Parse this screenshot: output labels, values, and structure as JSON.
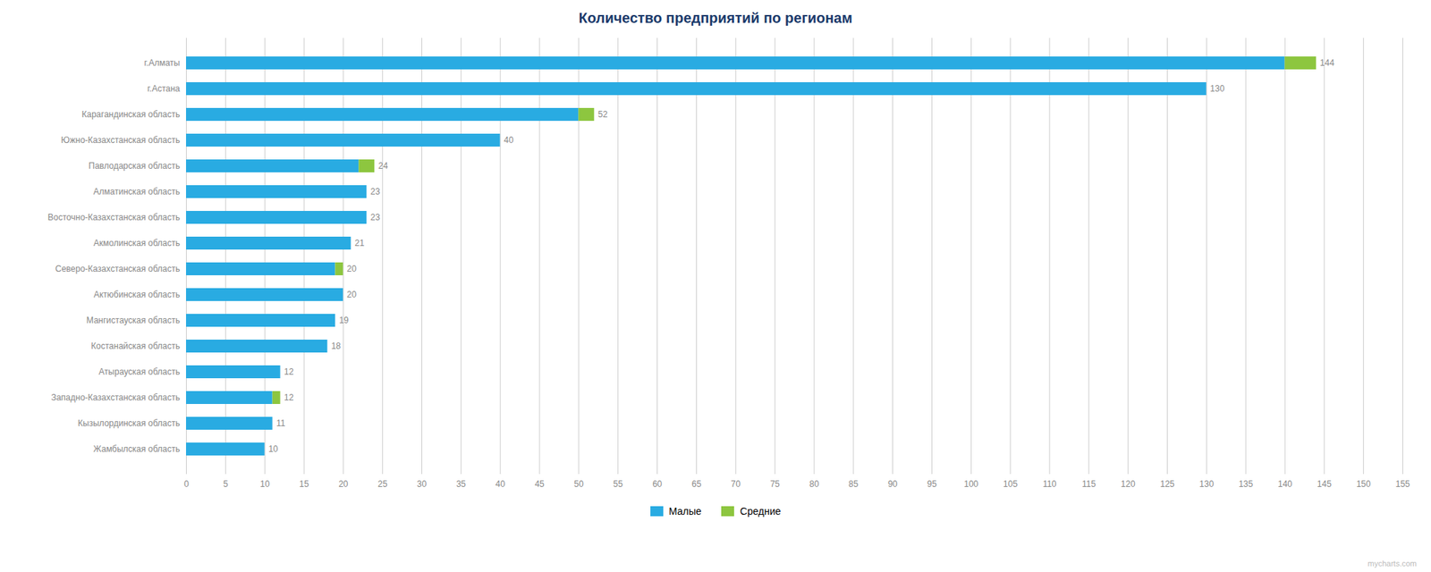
{
  "chart_data": {
    "type": "bar",
    "orientation": "horizontal",
    "stacked": true,
    "title": "Количество предприятий по регионам",
    "categories": [
      "г.Алматы",
      "г.Астана",
      "Карагандинская область",
      "Южно-Казахстанская область",
      "Павлодарская область",
      "Алматинская область",
      "Восточно-Казахстанская область",
      "Акмолинская область",
      "Северо-Казахстанская область",
      "Актюбинская область",
      "Мангистауская область",
      "Костанайская область",
      "Атырауская область",
      "Западно-Казахстанская область",
      "Кызылординская область",
      "Жамбылская область"
    ],
    "series": [
      {
        "name": "Малые",
        "color": "#29ABE2",
        "values": [
          140,
          130,
          50,
          40,
          22,
          23,
          23,
          21,
          19,
          20,
          19,
          18,
          12,
          11,
          11,
          10
        ]
      },
      {
        "name": "Средние",
        "color": "#8DC63F",
        "values": [
          4,
          0,
          2,
          0,
          2,
          0,
          0,
          0,
          1,
          0,
          0,
          0,
          0,
          1,
          0,
          0
        ]
      }
    ],
    "totals": [
      144,
      130,
      52,
      40,
      24,
      23,
      23,
      21,
      20,
      20,
      19,
      18,
      12,
      12,
      11,
      10
    ],
    "xlim": [
      0,
      155
    ],
    "xticks": [
      0,
      5,
      10,
      15,
      20,
      25,
      30,
      35,
      40,
      45,
      50,
      55,
      60,
      65,
      70,
      75,
      80,
      85,
      90,
      95,
      100,
      105,
      110,
      115,
      120,
      125,
      130,
      135,
      140,
      145,
      150,
      155
    ],
    "grid": true,
    "legend": "bottom",
    "annotations": [
      "mycharts.com"
    ]
  }
}
